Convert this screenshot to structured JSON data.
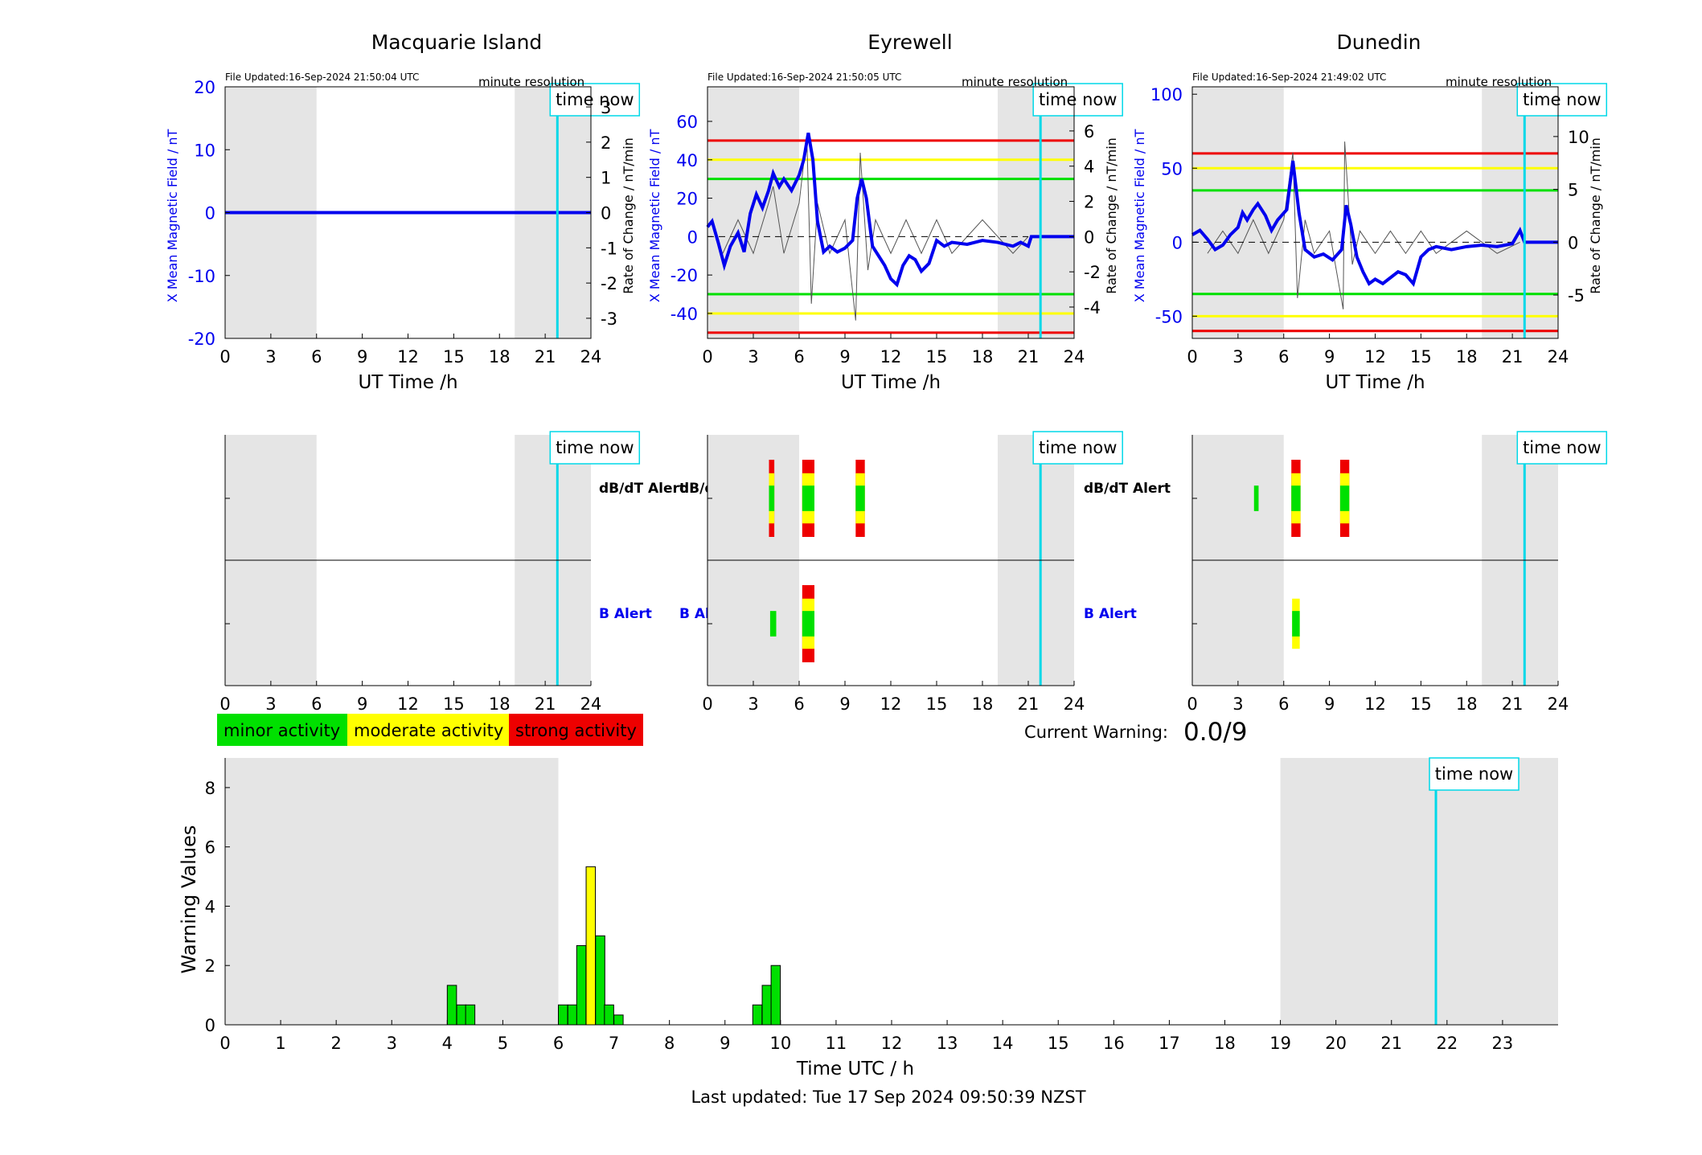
{
  "colors": {
    "series": "#0000ee",
    "roc": "#555555",
    "now_line": "#00d8e8",
    "shade": "#e5e5e5",
    "minor": "#00e000",
    "moderate": "#ffff00",
    "strong": "#ee0000"
  },
  "labels": {
    "time_now": "time now",
    "minute_resolution": "minute resolution",
    "ut_time": "UT Time /h",
    "y_left": "X Mean Magnetic Field / nT",
    "y_right": "Rate of Change / nT/min",
    "dbdt_alert": "dB/dT Alert",
    "b_alert": "B Alert",
    "current_warning_label": "Current Warning:",
    "current_warning_value": "0.0/9",
    "warning_ylabel": "Warning Values",
    "warning_xlabel": "Time UTC / h",
    "last_updated": "Last updated: Tue 17 Sep 2024 09:50:39 NZST"
  },
  "legend": [
    {
      "label": "minor activity",
      "color": "#00e000"
    },
    {
      "label": "moderate activity",
      "color": "#ffff00"
    },
    {
      "label": "strong activity",
      "color": "#ee0000"
    }
  ],
  "stations": [
    {
      "name": "Macquarie Island",
      "file_updated": "File Updated:16-Sep-2024 21:50:04 UTC",
      "ylim": [
        -20,
        20
      ],
      "yticks": [
        "20",
        "10",
        "0",
        "-10",
        "-20"
      ],
      "y2ticks": [
        "3",
        "2",
        "1",
        "0",
        "-1",
        "-2",
        "-3"
      ],
      "thresholds": [],
      "series": [
        [
          0,
          0
        ],
        [
          24,
          0
        ]
      ],
      "roc": [],
      "dbdt": [],
      "balert": []
    },
    {
      "name": "Eyrewell",
      "file_updated": "File Updated:16-Sep-2024 21:50:05 UTC",
      "ylim": [
        -53,
        78
      ],
      "yticks": [
        "60",
        "40",
        "20",
        "0",
        "-20",
        "-40"
      ],
      "y2ticks": [
        "6",
        "4",
        "2",
        "0",
        "-2",
        "-4"
      ],
      "thresholds": [
        50,
        40,
        30,
        -30,
        -40,
        -50
      ],
      "series": [
        [
          0,
          5
        ],
        [
          0.3,
          8
        ],
        [
          0.7,
          -3
        ],
        [
          1.1,
          -15
        ],
        [
          1.5,
          -5
        ],
        [
          2,
          2
        ],
        [
          2.4,
          -8
        ],
        [
          2.8,
          12
        ],
        [
          3.2,
          22
        ],
        [
          3.6,
          15
        ],
        [
          4,
          24
        ],
        [
          4.3,
          33
        ],
        [
          4.7,
          26
        ],
        [
          5,
          30
        ],
        [
          5.5,
          24
        ],
        [
          6,
          32
        ],
        [
          6.3,
          40
        ],
        [
          6.6,
          54
        ],
        [
          6.9,
          40
        ],
        [
          7.2,
          8
        ],
        [
          7.6,
          -8
        ],
        [
          8,
          -5
        ],
        [
          8.5,
          -8
        ],
        [
          9,
          -6
        ],
        [
          9.5,
          -2
        ],
        [
          9.8,
          20
        ],
        [
          10.1,
          30
        ],
        [
          10.4,
          20
        ],
        [
          10.8,
          -5
        ],
        [
          11.2,
          -10
        ],
        [
          11.6,
          -15
        ],
        [
          12,
          -22
        ],
        [
          12.4,
          -25
        ],
        [
          12.8,
          -15
        ],
        [
          13.2,
          -10
        ],
        [
          13.6,
          -12
        ],
        [
          14,
          -18
        ],
        [
          14.5,
          -14
        ],
        [
          15,
          -2
        ],
        [
          15.5,
          -5
        ],
        [
          16,
          -3
        ],
        [
          17,
          -4
        ],
        [
          18,
          -2
        ],
        [
          19,
          -3
        ],
        [
          20,
          -5
        ],
        [
          20.5,
          -3
        ],
        [
          21,
          -5
        ],
        [
          21.2,
          0
        ],
        [
          24,
          0
        ]
      ],
      "roc": [
        [
          1,
          -1
        ],
        [
          2,
          1
        ],
        [
          3,
          -1
        ],
        [
          4,
          2
        ],
        [
          4.3,
          3
        ],
        [
          5,
          -1
        ],
        [
          6,
          2
        ],
        [
          6.5,
          6
        ],
        [
          6.8,
          -4
        ],
        [
          7.2,
          2
        ],
        [
          8,
          -1
        ],
        [
          9,
          1
        ],
        [
          9.7,
          -5
        ],
        [
          10,
          5
        ],
        [
          10.5,
          -2
        ],
        [
          11,
          1
        ],
        [
          12,
          -1
        ],
        [
          13,
          1
        ],
        [
          14,
          -1
        ],
        [
          15,
          1
        ],
        [
          16,
          -1
        ],
        [
          18,
          1
        ],
        [
          20,
          -1
        ],
        [
          21,
          0
        ]
      ],
      "dbdt": [
        {
          "t": 4.2,
          "w": 0.35,
          "level": "strong"
        },
        {
          "t": 6.6,
          "w": 0.8,
          "level": "strong"
        },
        {
          "t": 10,
          "w": 0.6,
          "level": "strong"
        }
      ],
      "balert": [
        {
          "t": 4.3,
          "w": 0.4,
          "level": "minor"
        },
        {
          "t": 6.6,
          "w": 0.8,
          "level": "strong"
        }
      ]
    },
    {
      "name": "Dunedin",
      "file_updated": "File Updated:16-Sep-2024 21:49:02 UTC",
      "ylim": [
        -65,
        105
      ],
      "yticks": [
        "100",
        "50",
        "0",
        "-50"
      ],
      "y2ticks": [
        "10",
        "5",
        "0",
        "-5"
      ],
      "thresholds": [
        60,
        50,
        35,
        -35,
        -50,
        -60
      ],
      "series": [
        [
          0,
          5
        ],
        [
          0.5,
          8
        ],
        [
          1,
          2
        ],
        [
          1.5,
          -5
        ],
        [
          2,
          -2
        ],
        [
          2.5,
          5
        ],
        [
          3,
          10
        ],
        [
          3.3,
          20
        ],
        [
          3.6,
          15
        ],
        [
          4,
          22
        ],
        [
          4.3,
          26
        ],
        [
          4.8,
          18
        ],
        [
          5.2,
          8
        ],
        [
          5.6,
          15
        ],
        [
          6.2,
          22
        ],
        [
          6.6,
          55
        ],
        [
          7,
          20
        ],
        [
          7.4,
          -5
        ],
        [
          8,
          -10
        ],
        [
          8.6,
          -8
        ],
        [
          9.2,
          -12
        ],
        [
          9.8,
          -5
        ],
        [
          10.1,
          25
        ],
        [
          10.4,
          12
        ],
        [
          10.8,
          -10
        ],
        [
          11.2,
          -20
        ],
        [
          11.6,
          -28
        ],
        [
          12,
          -25
        ],
        [
          12.5,
          -28
        ],
        [
          13,
          -24
        ],
        [
          13.5,
          -20
        ],
        [
          14,
          -22
        ],
        [
          14.5,
          -28
        ],
        [
          15,
          -10
        ],
        [
          15.5,
          -5
        ],
        [
          16,
          -3
        ],
        [
          17,
          -5
        ],
        [
          18,
          -3
        ],
        [
          19,
          -2
        ],
        [
          20,
          -3
        ],
        [
          21,
          -1
        ],
        [
          21.5,
          8
        ],
        [
          21.8,
          0
        ],
        [
          24,
          0
        ]
      ],
      "roc": [
        [
          1,
          -1
        ],
        [
          2,
          1
        ],
        [
          3,
          -1
        ],
        [
          4,
          2
        ],
        [
          5,
          -1
        ],
        [
          6,
          2
        ],
        [
          6.6,
          8
        ],
        [
          6.9,
          -5
        ],
        [
          7.4,
          2
        ],
        [
          8,
          -1
        ],
        [
          9,
          1
        ],
        [
          9.9,
          -6
        ],
        [
          10,
          9
        ],
        [
          10.5,
          -2
        ],
        [
          11,
          1
        ],
        [
          12,
          -1
        ],
        [
          13,
          1
        ],
        [
          14,
          -1
        ],
        [
          15,
          1
        ],
        [
          16,
          -1
        ],
        [
          18,
          1
        ],
        [
          20,
          -1
        ],
        [
          21.5,
          0
        ]
      ],
      "dbdt": [
        {
          "t": 4.2,
          "w": 0.3,
          "level": "minor"
        },
        {
          "t": 6.8,
          "w": 0.6,
          "level": "strong"
        },
        {
          "t": 10,
          "w": 0.6,
          "level": "strong"
        }
      ],
      "balert": [
        {
          "t": 6.8,
          "w": 0.5,
          "level": "moderate"
        }
      ]
    }
  ],
  "chart_data": {
    "type": "bar",
    "title": "",
    "xlabel": "Time UTC / h",
    "ylabel": "Warning Values",
    "xlim": [
      0,
      24
    ],
    "ylim": [
      0,
      9
    ],
    "now_time": 21.8,
    "shaded": [
      [
        0,
        6
      ],
      [
        19,
        24
      ]
    ],
    "xticks": [
      "0",
      "1",
      "2",
      "3",
      "4",
      "5",
      "6",
      "7",
      "8",
      "9",
      "10",
      "11",
      "12",
      "13",
      "14",
      "15",
      "16",
      "17",
      "18",
      "19",
      "20",
      "21",
      "22",
      "23"
    ],
    "yticks": [
      "0",
      "2",
      "4",
      "6",
      "8"
    ],
    "bins": [
      {
        "t": 4.0,
        "value": 1.33,
        "level": "minor"
      },
      {
        "t": 4.17,
        "value": 0.67,
        "level": "minor"
      },
      {
        "t": 4.33,
        "value": 0.67,
        "level": "minor"
      },
      {
        "t": 6.0,
        "value": 0.67,
        "level": "minor"
      },
      {
        "t": 6.17,
        "value": 0.67,
        "level": "minor"
      },
      {
        "t": 6.33,
        "value": 2.67,
        "level": "minor"
      },
      {
        "t": 6.5,
        "value": 5.33,
        "level": "moderate"
      },
      {
        "t": 6.67,
        "value": 3.0,
        "level": "minor"
      },
      {
        "t": 6.83,
        "value": 0.67,
        "level": "minor"
      },
      {
        "t": 7.0,
        "value": 0.33,
        "level": "minor"
      },
      {
        "t": 9.5,
        "value": 0.67,
        "level": "minor"
      },
      {
        "t": 9.67,
        "value": 1.33,
        "level": "minor"
      },
      {
        "t": 9.83,
        "value": 2.0,
        "level": "minor"
      }
    ]
  }
}
